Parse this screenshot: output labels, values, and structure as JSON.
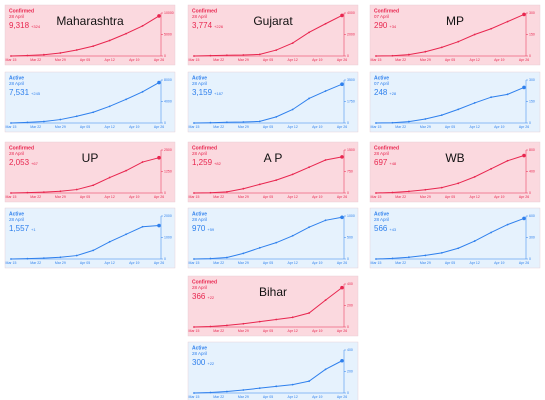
{
  "chart_data": [
    {
      "type": "line",
      "title": "Maharashtra",
      "label": "Confirmed",
      "date": "28 April",
      "total": "9,318",
      "change": "+324",
      "color": "#e8264f",
      "background": "#fbd9df",
      "values": [
        0,
        120,
        300,
        700,
        1400,
        2300,
        3600,
        5200,
        7000,
        9318
      ],
      "ylim": [
        0,
        10000
      ],
      "yticks": [
        0,
        5000,
        10000
      ],
      "x_labels": [
        "Mar 15",
        "Mar 22",
        "Mar 29",
        "Apr 05",
        "Apr 12",
        "Apr 19",
        "Apr 26"
      ]
    },
    {
      "type": "line",
      "label": "Active",
      "date": "28 April",
      "total": "7,531",
      "change": "+245",
      "color": "#2f80ed",
      "background": "#e6f2fd",
      "values": [
        0,
        110,
        280,
        640,
        1250,
        2000,
        3100,
        4400,
        5800,
        7531
      ],
      "ylim": [
        0,
        8000
      ],
      "yticks": [
        0,
        4000,
        8000
      ],
      "x_labels": [
        "Mar 15",
        "Mar 22",
        "Mar 29",
        "Apr 05",
        "Apr 12",
        "Apr 19",
        "Apr 26"
      ]
    },
    {
      "type": "line",
      "title": "Gujarat",
      "label": "Confirmed",
      "date": "28 April",
      "total": "3,774",
      "change": "+226",
      "color": "#e8264f",
      "background": "#fbd9df",
      "values": [
        0,
        30,
        70,
        90,
        150,
        550,
        1200,
        2200,
        3000,
        3774
      ],
      "ylim": [
        0,
        4000
      ],
      "yticks": [
        0,
        2000,
        4000
      ],
      "x_labels": [
        "Mar 15",
        "Mar 22",
        "Mar 29",
        "Apr 05",
        "Apr 12",
        "Apr 19",
        "Apr 26"
      ]
    },
    {
      "type": "line",
      "label": "Active",
      "date": "28 April",
      "total": "3,159",
      "change": "+187",
      "color": "#2f80ed",
      "background": "#e6f2fd",
      "values": [
        0,
        25,
        60,
        80,
        130,
        500,
        1100,
        2000,
        2600,
        3159
      ],
      "ylim": [
        0,
        3500
      ],
      "yticks": [
        0,
        1750,
        3500
      ],
      "x_labels": [
        "Mar 15",
        "Mar 22",
        "Mar 29",
        "Apr 05",
        "Apr 12",
        "Apr 19",
        "Apr 26"
      ]
    },
    {
      "type": "line",
      "title": "MP",
      "label": "Confirmed",
      "date": "07 April",
      "total": "290",
      "change": "+34",
      "color": "#e8264f",
      "background": "#fbd9df",
      "values": [
        0,
        2,
        10,
        30,
        60,
        100,
        150,
        190,
        240,
        290
      ],
      "ylim": [
        0,
        300
      ],
      "yticks": [
        0,
        150,
        300
      ],
      "x_labels": [
        "Mar 15",
        "Mar 22",
        "Mar 29",
        "Apr 05",
        "Apr 12",
        "Apr 19",
        "Apr 26"
      ]
    },
    {
      "type": "line",
      "label": "Active",
      "date": "07 April",
      "total": "248",
      "change": "+28",
      "color": "#2f80ed",
      "background": "#e6f2fd",
      "values": [
        0,
        2,
        10,
        28,
        55,
        95,
        140,
        180,
        200,
        248
      ],
      "ylim": [
        0,
        300
      ],
      "yticks": [
        0,
        150,
        300
      ],
      "x_labels": [
        "Mar 15",
        "Mar 22",
        "Mar 29",
        "Apr 05",
        "Apr 12",
        "Apr 19",
        "Apr 26"
      ]
    },
    {
      "type": "line",
      "title": "UP",
      "label": "Confirmed",
      "date": "28 April",
      "total": "2,053",
      "change": "+67",
      "color": "#e8264f",
      "background": "#fbd9df",
      "values": [
        0,
        20,
        50,
        100,
        200,
        450,
        900,
        1300,
        1800,
        2053
      ],
      "ylim": [
        0,
        2500
      ],
      "yticks": [
        0,
        1250,
        2500
      ],
      "x_labels": [
        "Mar 15",
        "Mar 22",
        "Mar 29",
        "Apr 05",
        "Apr 12",
        "Apr 19",
        "Apr 26"
      ]
    },
    {
      "type": "line",
      "label": "Active",
      "date": "28 April",
      "total": "1,557",
      "change": "+1",
      "color": "#2f80ed",
      "background": "#e6f2fd",
      "values": [
        0,
        15,
        40,
        80,
        160,
        400,
        800,
        1150,
        1500,
        1557
      ],
      "ylim": [
        0,
        2000
      ],
      "yticks": [
        0,
        1000,
        2000
      ],
      "x_labels": [
        "Mar 15",
        "Mar 22",
        "Mar 29",
        "Apr 05",
        "Apr 12",
        "Apr 19",
        "Apr 26"
      ]
    },
    {
      "type": "line",
      "title": "A P",
      "label": "Confirmed",
      "date": "28 April",
      "total": "1,259",
      "change": "+82",
      "color": "#e8264f",
      "background": "#fbd9df",
      "values": [
        0,
        10,
        40,
        150,
        300,
        450,
        650,
        900,
        1150,
        1259
      ],
      "ylim": [
        0,
        1500
      ],
      "yticks": [
        0,
        750,
        1500
      ],
      "x_labels": [
        "Mar 15",
        "Mar 22",
        "Mar 29",
        "Apr 05",
        "Apr 12",
        "Apr 19",
        "Apr 26"
      ]
    },
    {
      "type": "line",
      "label": "Active",
      "date": "28 April",
      "total": "970",
      "change": "+59",
      "color": "#2f80ed",
      "background": "#e6f2fd",
      "values": [
        0,
        10,
        35,
        130,
        260,
        380,
        540,
        740,
        900,
        970
      ],
      "ylim": [
        0,
        1000
      ],
      "yticks": [
        0,
        500,
        1000
      ],
      "x_labels": [
        "Mar 15",
        "Mar 22",
        "Mar 29",
        "Apr 05",
        "Apr 12",
        "Apr 19",
        "Apr 26"
      ]
    },
    {
      "type": "line",
      "title": "WB",
      "label": "Confirmed",
      "date": "28 April",
      "total": "697",
      "change": "+48",
      "color": "#e8264f",
      "background": "#fbd9df",
      "values": [
        0,
        10,
        30,
        60,
        100,
        180,
        300,
        450,
        600,
        697
      ],
      "ylim": [
        0,
        800
      ],
      "yticks": [
        0,
        400,
        800
      ],
      "x_labels": [
        "Mar 15",
        "Mar 22",
        "Mar 29",
        "Apr 05",
        "Apr 12",
        "Apr 19",
        "Apr 26"
      ]
    },
    {
      "type": "line",
      "label": "Active",
      "date": "28 April",
      "total": "566",
      "change": "+43",
      "color": "#2f80ed",
      "background": "#e6f2fd",
      "values": [
        0,
        8,
        25,
        50,
        85,
        150,
        250,
        370,
        480,
        566
      ],
      "ylim": [
        0,
        600
      ],
      "yticks": [
        0,
        300,
        600
      ],
      "x_labels": [
        "Mar 15",
        "Mar 22",
        "Mar 29",
        "Apr 05",
        "Apr 12",
        "Apr 19",
        "Apr 26"
      ]
    },
    {
      "type": "line",
      "title": "Bihar",
      "label": "Confirmed",
      "date": "28 April",
      "total": "366",
      "change": "+22",
      "color": "#e8264f",
      "background": "#fbd9df",
      "values": [
        0,
        5,
        15,
        30,
        50,
        70,
        90,
        130,
        250,
        366
      ],
      "ylim": [
        0,
        400
      ],
      "yticks": [
        0,
        200,
        400
      ],
      "x_labels": [
        "Mar 15",
        "Mar 22",
        "Mar 29",
        "Apr 05",
        "Apr 12",
        "Apr 19",
        "Apr 26"
      ]
    },
    {
      "type": "line",
      "label": "Active",
      "date": "28 April",
      "total": "300",
      "change": "+22",
      "color": "#2f80ed",
      "background": "#e6f2fd",
      "values": [
        0,
        5,
        14,
        28,
        45,
        62,
        78,
        110,
        220,
        300
      ],
      "ylim": [
        0,
        400
      ],
      "yticks": [
        0,
        200,
        400
      ],
      "x_labels": [
        "Mar 15",
        "Mar 22",
        "Mar 29",
        "Apr 05",
        "Apr 12",
        "Apr 19",
        "Apr 26"
      ]
    }
  ]
}
